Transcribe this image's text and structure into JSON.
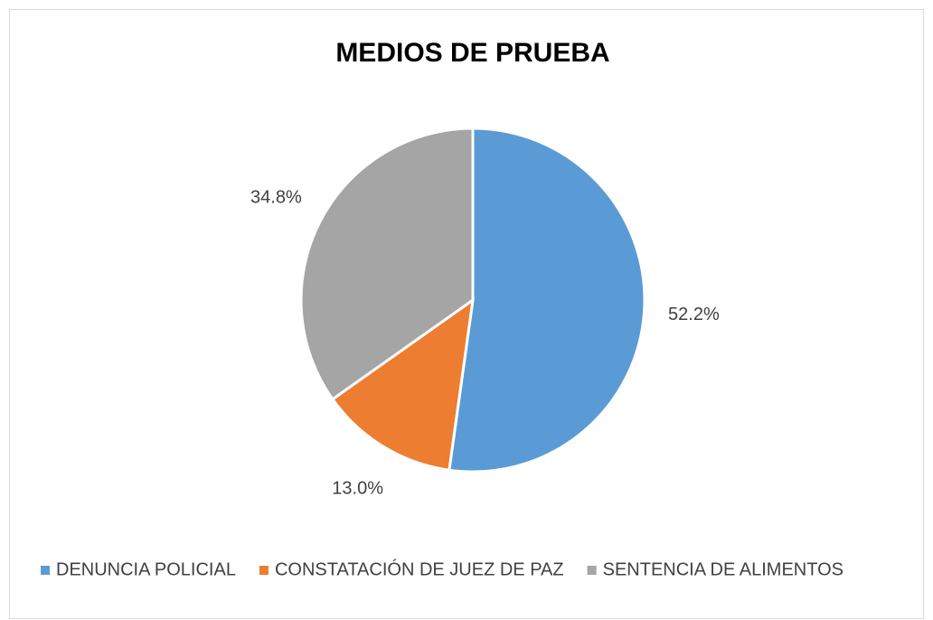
{
  "chart_data": {
    "type": "pie",
    "title": "MEDIOS DE PRUEBA",
    "categories": [
      "DENUNCIA POLICIAL",
      "CONSTATACIÓN DE JUEZ DE PAZ",
      "SENTENCIA DE ALIMENTOS"
    ],
    "values": [
      52.2,
      13.0,
      34.8
    ],
    "value_labels": [
      "52.2%",
      "13.0%",
      "34.8%"
    ],
    "colors": [
      "#5b9bd5",
      "#ed7d31",
      "#a5a5a5"
    ],
    "legend": "bottom"
  }
}
